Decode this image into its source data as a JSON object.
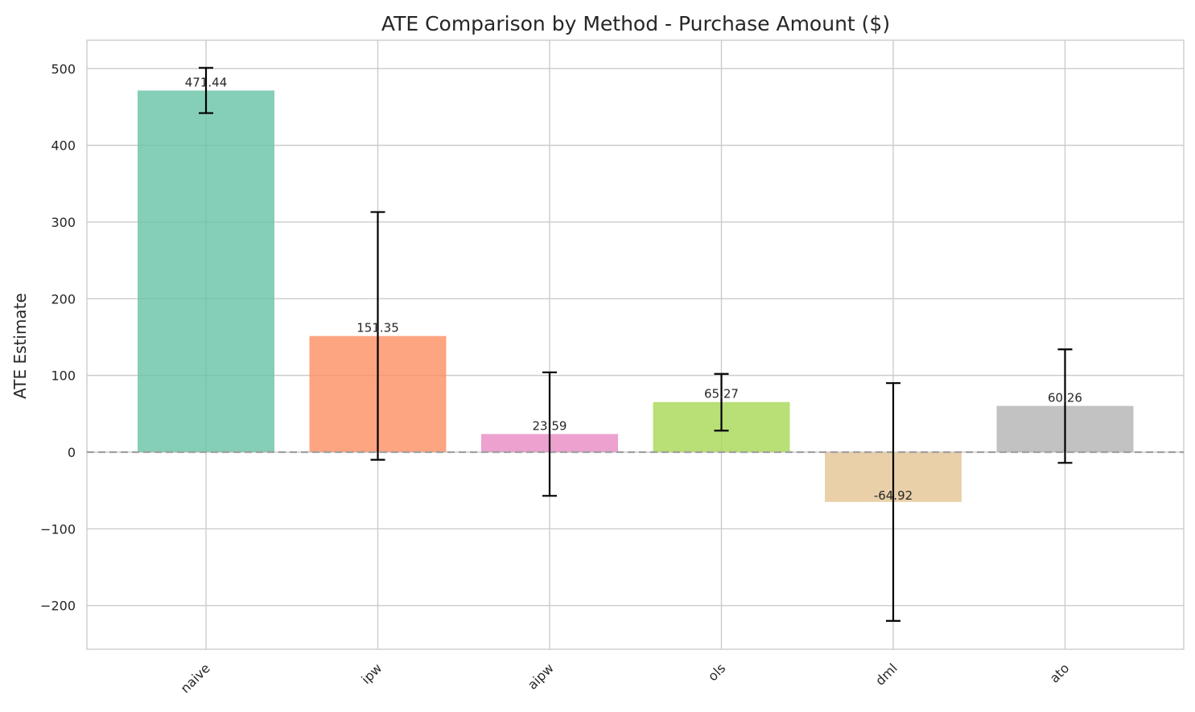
{
  "chart_data": {
    "type": "bar",
    "title": "ATE Comparison by Method - Purchase Amount ($)",
    "xlabel": "",
    "ylabel": "ATE Estimate",
    "ylim": [
      -257,
      537
    ],
    "yticks": [
      -200,
      -100,
      0,
      100,
      200,
      300,
      400,
      500
    ],
    "ytick_labels": [
      "−200",
      "−100",
      "0",
      "100",
      "200",
      "300",
      "400",
      "500"
    ],
    "grid": true,
    "zero_line": "dashed",
    "categories": [
      "naive",
      "ipw",
      "aipw",
      "ols",
      "dml",
      "ato"
    ],
    "values": [
      471.44,
      151.35,
      23.59,
      65.27,
      -64.92,
      60.26
    ],
    "value_labels": [
      "471.44",
      "151.35",
      "23.59",
      "65.27",
      "-64.92",
      "60.26"
    ],
    "error_low": [
      442,
      -10,
      -57,
      28,
      -220,
      -14
    ],
    "error_high": [
      501,
      313,
      104,
      102,
      90,
      134
    ],
    "colors": [
      "#66c2a5",
      "#fc8d62",
      "#e78ac3",
      "#a6d854",
      "#e5c494",
      "#b3b3b3"
    ]
  }
}
